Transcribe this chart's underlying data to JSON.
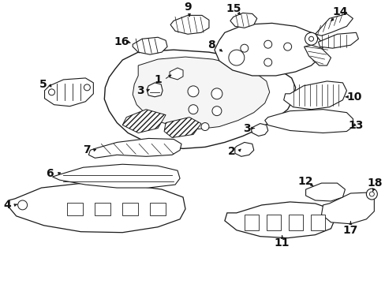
{
  "background_color": "#ffffff",
  "fig_width": 4.89,
  "fig_height": 3.6,
  "dpi": 100,
  "lc": "#1a1a1a"
}
